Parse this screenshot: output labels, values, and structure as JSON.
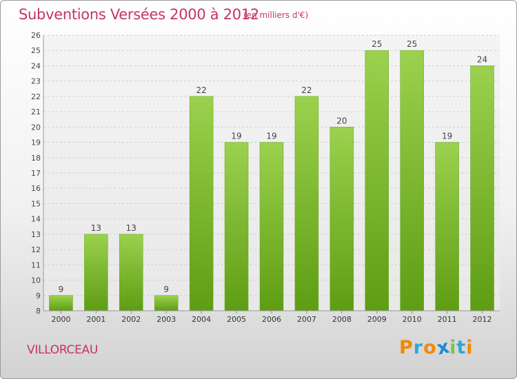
{
  "header": {
    "title": "Subventions Versées 2000 à 2012",
    "subtitle": "(en milliers d'€)"
  },
  "footer": {
    "commune": "VILLORCEAU",
    "logo": [
      "P",
      "r",
      "o",
      "x",
      "i",
      "t",
      "i"
    ]
  },
  "colors": {
    "title": "#c4336c",
    "bar_top": "#9bd14e",
    "bar_bottom": "#5e9d13",
    "logo_letters": [
      "#f08a00",
      "#2aa9d9",
      "#f08a00",
      "#1a8bd1",
      "#7cc242",
      "#2aa9d9",
      "#f08a00"
    ]
  },
  "chart_data": {
    "type": "bar",
    "title": "Subventions Versées 2000 à 2012",
    "subtitle": "(en milliers d'€)",
    "categories": [
      "2000",
      "2001",
      "2002",
      "2003",
      "2004",
      "2005",
      "2006",
      "2007",
      "2008",
      "2009",
      "2010",
      "2011",
      "2012"
    ],
    "values": [
      9,
      13,
      13,
      9,
      22,
      19,
      19,
      22,
      20,
      25,
      25,
      19,
      24
    ],
    "ylim": [
      8,
      26
    ],
    "yticks": [
      8,
      9,
      10,
      11,
      12,
      13,
      14,
      15,
      16,
      17,
      18,
      19,
      20,
      21,
      22,
      23,
      24,
      25,
      26
    ],
    "grid": "horizontal dashed",
    "data_labels": true,
    "xlabel": "",
    "ylabel": ""
  }
}
